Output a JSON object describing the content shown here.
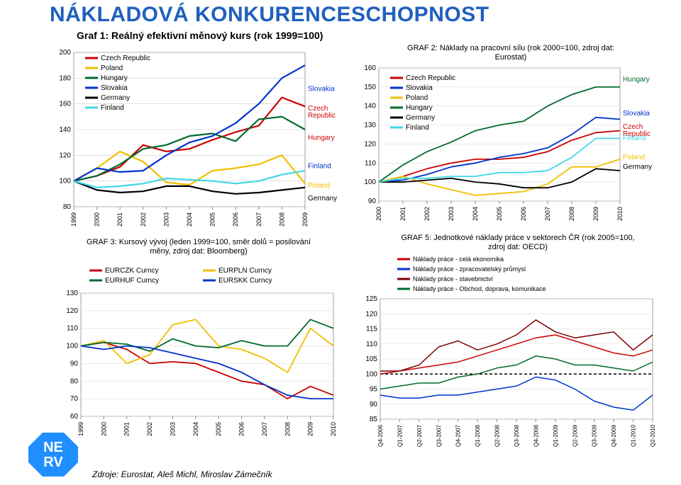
{
  "page_title": "NÁKLADOVÁ KONKURENCESCHOPNOST",
  "subtitle": "Graf 1: Reálný efektivní měnový kurs (rok 1999=100)",
  "source_text": "Zdroje: Eurostat, Aleš Michl, Miroslav Zámečník",
  "logo": {
    "text_top": "NE",
    "text_bottom": "RV",
    "color": "#1f8fff"
  },
  "chart1": {
    "type": "line",
    "title": "Graf 1",
    "years": [
      "1999",
      "2000",
      "2001",
      "2002",
      "2003",
      "2004",
      "2005",
      "2006",
      "2007",
      "2008",
      "2009"
    ],
    "ylim": [
      80,
      200
    ],
    "ytick_step": 20,
    "plot_bg": "#ffffff",
    "grid_color": "#cccccc",
    "line_width": 2.2,
    "series": [
      {
        "name": "Czech Republic",
        "color": "#cc0000",
        "label_color": "#cc0000",
        "label": "Czech\nRepublic",
        "label_y": 155,
        "data": [
          100,
          104,
          111,
          128,
          123,
          125,
          132,
          138,
          143,
          165,
          158
        ]
      },
      {
        "name": "Poland",
        "color": "#f0c000",
        "label_color": "#f0c000",
        "label": "Poland",
        "label_y": 95,
        "data": [
          100,
          110,
          123,
          115,
          99,
          97,
          108,
          110,
          113,
          120,
          98
        ]
      },
      {
        "name": "Hungary",
        "color": "#006b2e",
        "label_color": "#cc0000",
        "label": "Hungary",
        "label_y": 132,
        "data": [
          100,
          104,
          113,
          125,
          128,
          135,
          137,
          131,
          148,
          150,
          140
        ]
      },
      {
        "name": "Slovakia",
        "color": "#0033cc",
        "label_color": "#0033cc",
        "label": "Slovakia",
        "label_y": 170,
        "data": [
          100,
          110,
          107,
          108,
          120,
          130,
          135,
          145,
          160,
          180,
          190
        ]
      },
      {
        "name": "Germany",
        "color": "#000000",
        "label_color": "#000000",
        "label": "Germany",
        "label_y": 85,
        "data": [
          100,
          93,
          91,
          92,
          96,
          96,
          92,
          90,
          91,
          93,
          95
        ]
      },
      {
        "name": "Finland",
        "color": "#40d8e8",
        "label_color": "#0033cc",
        "label": "Finland",
        "label_y": 110,
        "data": [
          100,
          95,
          96,
          98,
          102,
          101,
          100,
          98,
          100,
          105,
          108
        ]
      }
    ],
    "legend": [
      "Czech Republic",
      "Poland",
      "Hungary",
      "Slovakia",
      "Germany",
      "Finland"
    ],
    "legend_colors": [
      "#cc0000",
      "#f0c000",
      "#006b2e",
      "#0033cc",
      "#000000",
      "#40d8e8"
    ]
  },
  "chart2": {
    "type": "line",
    "title": "GRAF 2: Náklady na pracovní sílu (rok 2000=100, zdroj dat: Eurostat)",
    "years": [
      "2000",
      "2001",
      "2002",
      "2003",
      "2004",
      "2005",
      "2006",
      "2007",
      "2008",
      "2009",
      "2010"
    ],
    "ylim": [
      90,
      160
    ],
    "ytick_step": 10,
    "plot_bg": "#ffffff",
    "grid_color": "#dddddd",
    "line_width": 1.8,
    "series": [
      {
        "name": "Czech Republic",
        "color": "#cc0000",
        "label": "Czech\nRepublic",
        "label_y": 128,
        "data": [
          100,
          103,
          107,
          110,
          112,
          112,
          113,
          116,
          122,
          126,
          127
        ]
      },
      {
        "name": "Slovakia",
        "color": "#0033cc",
        "label": "Slovakia",
        "label_y": 135,
        "data": [
          100,
          101,
          104,
          108,
          110,
          113,
          115,
          118,
          125,
          134,
          133
        ]
      },
      {
        "name": "Poland",
        "color": "#f0c000",
        "label": "Poland",
        "label_y": 112,
        "data": [
          100,
          103,
          99,
          96,
          93,
          94,
          95,
          99,
          108,
          108,
          112
        ]
      },
      {
        "name": "Hungary",
        "color": "#006b2e",
        "label": "Hungary",
        "label_y": 153,
        "data": [
          100,
          109,
          116,
          121,
          127,
          130,
          132,
          140,
          146,
          150,
          150
        ]
      },
      {
        "name": "Germany",
        "color": "#000000",
        "label": "Germany",
        "label_y": 107,
        "data": [
          100,
          100,
          101,
          102,
          100,
          99,
          97,
          97,
          100,
          107,
          106
        ]
      },
      {
        "name": "Finland",
        "color": "#40d8e8",
        "label": "Finland",
        "label_y": 122,
        "data": [
          100,
          102,
          102,
          103,
          103,
          105,
          105,
          106,
          113,
          123,
          123
        ]
      }
    ],
    "legend": [
      "Czech Republic",
      "Slovakia",
      "Poland",
      "Hungary",
      "Germany",
      "Finland"
    ],
    "legend_colors": [
      "#cc0000",
      "#0033cc",
      "#f0c000",
      "#006b2e",
      "#000000",
      "#40d8e8"
    ]
  },
  "chart3": {
    "type": "line",
    "title": "GRAF 3: Kursový vývoj (leden 1999=100, směr dolů = posilování měny, zdroj dat: Bloomberg)",
    "years": [
      "1999",
      "2000",
      "2001",
      "2002",
      "2003",
      "2004",
      "2005",
      "2006",
      "2007",
      "2008",
      "2009",
      "2010"
    ],
    "ylim": [
      60,
      130
    ],
    "ytick_step": 10,
    "plot_bg": "#ffffff",
    "grid_color": "#dddddd",
    "line_width": 1.8,
    "series": [
      {
        "name": "EURCZK Curncy",
        "color": "#cc0000",
        "data": [
          100,
          102,
          98,
          90,
          91,
          90,
          85,
          80,
          78,
          70,
          77,
          72
        ]
      },
      {
        "name": "EURPLN Curncy",
        "color": "#f0c000",
        "data": [
          100,
          103,
          90,
          95,
          112,
          115,
          100,
          98,
          93,
          85,
          110,
          100
        ]
      },
      {
        "name": "EURHUF Curncy",
        "color": "#006b2e",
        "data": [
          100,
          102,
          101,
          97,
          104,
          100,
          99,
          103,
          100,
          100,
          115,
          110
        ]
      },
      {
        "name": "EURSKK Curncy",
        "color": "#0033cc",
        "data": [
          100,
          98,
          100,
          99,
          96,
          93,
          90,
          85,
          78,
          72,
          70,
          70
        ]
      }
    ],
    "legend": [
      "EURCZK Curncy",
      "EURPLN Curncy",
      "EURHUF Curncy",
      "EURSKK Curncy"
    ],
    "legend_colors": [
      "#cc0000",
      "#f0c000",
      "#006b2e",
      "#0033cc"
    ]
  },
  "chart4": {
    "type": "line",
    "title": "GRAF 5: Jednotkové náklady práce v sektorech ČR (rok 2005=100, zdroj dat: OECD)",
    "quarters": [
      "Q4-2006",
      "Q1-2007",
      "Q2-2007",
      "Q3-2007",
      "Q4-2007",
      "Q1-2008",
      "Q2-2008",
      "Q3-2008",
      "Q4-2008",
      "Q1-2009",
      "Q2-2009",
      "Q3-2009",
      "Q4-2009",
      "Q1-2010",
      "Q2-2010"
    ],
    "ylim": [
      85,
      125
    ],
    "ytick_step": 5,
    "plot_bg": "#ffffff",
    "grid_color": "#dddddd",
    "line_width": 1.5,
    "baseline_y": 100,
    "baseline_color": "#000000",
    "baseline_dash": "4,3",
    "series": [
      {
        "name": "Náklady práce - celá ekonomika",
        "color": "#cc0000",
        "data": [
          100,
          101,
          102,
          103,
          104,
          106,
          108,
          110,
          112,
          113,
          111,
          109,
          107,
          106,
          108
        ]
      },
      {
        "name": "Náklady práce - zpracovatelský průmysl",
        "color": "#0033cc",
        "data": [
          93,
          92,
          92,
          93,
          93,
          94,
          95,
          96,
          99,
          98,
          95,
          91,
          89,
          88,
          93
        ]
      },
      {
        "name": "Náklady práce - stavebnictví",
        "color": "#800000",
        "data": [
          101,
          101,
          103,
          109,
          111,
          108,
          110,
          113,
          118,
          114,
          112,
          113,
          114,
          108,
          113
        ]
      },
      {
        "name": "Náklady práce - Obchod, doprava, komunikace",
        "color": "#006b2e",
        "data": [
          95,
          96,
          97,
          97,
          99,
          100,
          102,
          103,
          106,
          105,
          103,
          103,
          102,
          101,
          104
        ]
      }
    ],
    "legend": [
      "Náklady práce - celá ekonomika",
      "Náklady práce - zpracovatelský průmysl",
      "Náklady práce - stavebnictví",
      "Náklady práce - Obchod, doprava, komunikace"
    ],
    "legend_colors": [
      "#cc0000",
      "#0033cc",
      "#800000",
      "#006b2e"
    ]
  }
}
